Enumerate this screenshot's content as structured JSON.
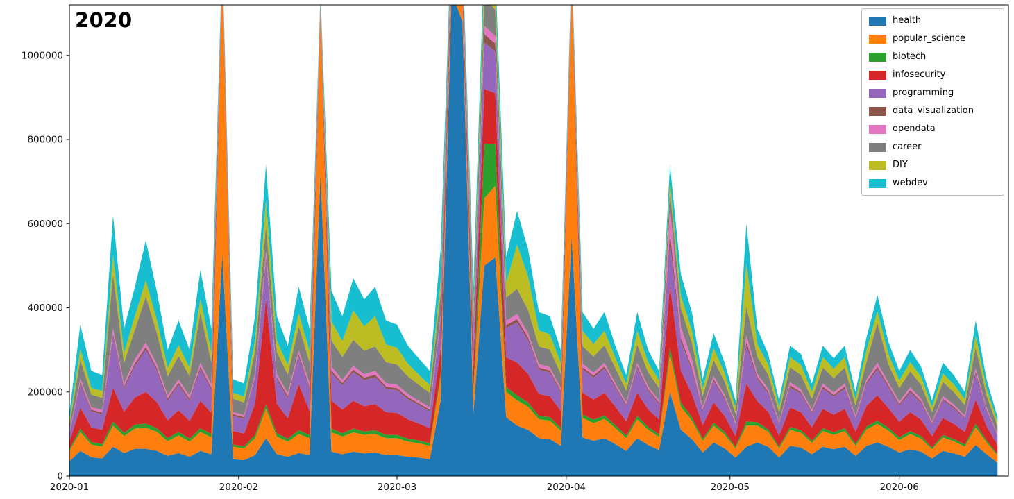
{
  "chart_data": {
    "type": "area",
    "stacked": true,
    "title": "2020",
    "xlabel": "",
    "ylabel": "",
    "grid": false,
    "legend_position": "upper right",
    "ylim": [
      0,
      1120000
    ],
    "yticks": [
      0,
      200000,
      400000,
      600000,
      800000,
      1000000
    ],
    "ytick_labels": [
      "0",
      "200000",
      "400000",
      "600000",
      "800000",
      "1000000"
    ],
    "xticks": [
      "2020-01-01",
      "2020-02-01",
      "2020-03-01",
      "2020-04-01",
      "2020-05-01",
      "2020-06-01"
    ],
    "xtick_labels": [
      "2020-01",
      "2020-02",
      "2020-03",
      "2020-04",
      "2020-05",
      "2020-06"
    ],
    "x_domain": [
      "2020-01-01",
      "2020-06-21"
    ],
    "values_unit": 1000,
    "values_note": "series values are in thousands; multiply by values_unit for axis units; values estimated from pixels, spikes above ylim are clipped",
    "x": [
      "2020-01-01",
      "2020-01-03",
      "2020-01-05",
      "2020-01-07",
      "2020-01-09",
      "2020-01-11",
      "2020-01-13",
      "2020-01-15",
      "2020-01-17",
      "2020-01-19",
      "2020-01-21",
      "2020-01-23",
      "2020-01-25",
      "2020-01-27",
      "2020-01-29",
      "2020-01-31",
      "2020-02-02",
      "2020-02-04",
      "2020-02-06",
      "2020-02-08",
      "2020-02-10",
      "2020-02-12",
      "2020-02-14",
      "2020-02-16",
      "2020-02-18",
      "2020-02-20",
      "2020-02-22",
      "2020-02-24",
      "2020-02-26",
      "2020-02-28",
      "2020-03-01",
      "2020-03-03",
      "2020-03-05",
      "2020-03-07",
      "2020-03-09",
      "2020-03-11",
      "2020-03-13",
      "2020-03-15",
      "2020-03-17",
      "2020-03-19",
      "2020-03-21",
      "2020-03-23",
      "2020-03-25",
      "2020-03-27",
      "2020-03-29",
      "2020-03-31",
      "2020-04-02",
      "2020-04-04",
      "2020-04-06",
      "2020-04-08",
      "2020-04-10",
      "2020-04-12",
      "2020-04-14",
      "2020-04-16",
      "2020-04-18",
      "2020-04-20",
      "2020-04-22",
      "2020-04-24",
      "2020-04-26",
      "2020-04-28",
      "2020-04-30",
      "2020-05-02",
      "2020-05-04",
      "2020-05-06",
      "2020-05-08",
      "2020-05-10",
      "2020-05-12",
      "2020-05-14",
      "2020-05-16",
      "2020-05-18",
      "2020-05-20",
      "2020-05-22",
      "2020-05-24",
      "2020-05-26",
      "2020-05-28",
      "2020-05-30",
      "2020-06-01",
      "2020-06-03",
      "2020-06-05",
      "2020-06-07",
      "2020-06-09",
      "2020-06-11",
      "2020-06-13",
      "2020-06-15",
      "2020-06-17",
      "2020-06-19"
    ],
    "series": [
      {
        "name": "health",
        "color": "#1f77b4",
        "values": [
          35,
          60,
          45,
          42,
          70,
          55,
          65,
          65,
          60,
          48,
          55,
          46,
          60,
          52,
          530,
          40,
          38,
          50,
          90,
          52,
          46,
          55,
          50,
          720,
          58,
          52,
          58,
          54,
          56,
          50,
          50,
          46,
          44,
          40,
          180,
          1150,
          1080,
          150,
          500,
          520,
          140,
          120,
          110,
          90,
          88,
          72,
          570,
          92,
          84,
          90,
          76,
          60,
          90,
          74,
          62,
          200,
          110,
          88,
          56,
          80,
          66,
          44,
          70,
          80,
          70,
          44,
          72,
          68,
          52,
          70,
          64,
          70,
          48,
          72,
          80,
          70,
          56,
          64,
          58,
          42,
          60,
          54,
          46,
          74,
          52,
          32
        ]
      },
      {
        "name": "popular_science",
        "color": "#ff7f0e",
        "values": [
          25,
          45,
          30,
          28,
          50,
          40,
          48,
          50,
          45,
          35,
          42,
          36,
          45,
          40,
          660,
          30,
          28,
          40,
          70,
          42,
          36,
          45,
          40,
          380,
          46,
          42,
          46,
          44,
          44,
          40,
          40,
          36,
          34,
          32,
          55,
          40,
          45,
          50,
          160,
          170,
          60,
          60,
          55,
          45,
          44,
          36,
          600,
          46,
          42,
          46,
          38,
          30,
          45,
          36,
          31,
          90,
          55,
          44,
          28,
          40,
          33,
          22,
          50,
          40,
          35,
          22,
          38,
          35,
          27,
          37,
          34,
          37,
          24,
          39,
          44,
          38,
          30,
          36,
          31,
          22,
          32,
          29,
          24,
          42,
          28,
          17
        ]
      },
      {
        "name": "biotech",
        "color": "#2ca02c",
        "values": [
          4,
          8,
          6,
          6,
          10,
          8,
          9,
          10,
          9,
          7,
          8,
          7,
          9,
          8,
          5,
          5,
          5,
          8,
          10,
          8,
          7,
          9,
          8,
          4,
          9,
          8,
          9,
          8,
          9,
          8,
          8,
          7,
          7,
          6,
          9,
          6,
          6,
          8,
          130,
          100,
          12,
          12,
          10,
          8,
          8,
          7,
          5,
          8,
          8,
          8,
          7,
          6,
          8,
          7,
          6,
          15,
          10,
          8,
          5,
          7,
          6,
          4,
          10,
          8,
          6,
          4,
          7,
          6,
          5,
          7,
          6,
          7,
          5,
          7,
          8,
          7,
          6,
          7,
          6,
          4,
          6,
          5,
          5,
          8,
          5,
          3
        ]
      },
      {
        "name": "infosecurity",
        "color": "#d62728",
        "values": [
          18,
          50,
          35,
          34,
          80,
          50,
          65,
          75,
          62,
          42,
          52,
          42,
          65,
          50,
          15,
          32,
          30,
          75,
          250,
          70,
          48,
          110,
          56,
          12,
          66,
          56,
          66,
          60,
          62,
          54,
          52,
          46,
          40,
          36,
          60,
          30,
          32,
          55,
          130,
          120,
          70,
          78,
          68,
          52,
          50,
          40,
          14,
          52,
          48,
          54,
          44,
          34,
          55,
          42,
          35,
          150,
          75,
          56,
          32,
          48,
          38,
          25,
          90,
          50,
          42,
          26,
          46,
          43,
          32,
          46,
          42,
          46,
          29,
          49,
          60,
          47,
          37,
          45,
          39,
          27,
          40,
          36,
          30,
          58,
          34,
          21
        ]
      },
      {
        "name": "programming",
        "color": "#9467bd",
        "values": [
          18,
          55,
          38,
          37,
          120,
          55,
          75,
          100,
          75,
          48,
          60,
          48,
          75,
          55,
          12,
          36,
          35,
          58,
          90,
          58,
          48,
          65,
          53,
          10,
          66,
          58,
          68,
          62,
          64,
          56,
          54,
          48,
          44,
          40,
          62,
          25,
          28,
          55,
          110,
          100,
          70,
          95,
          80,
          58,
          56,
          44,
          12,
          56,
          52,
          58,
          46,
          36,
          58,
          44,
          37,
          100,
          70,
          56,
          34,
          50,
          40,
          27,
          90,
          52,
          44,
          27,
          48,
          44,
          33,
          48,
          43,
          48,
          30,
          51,
          62,
          49,
          38,
          47,
          40,
          28,
          42,
          37,
          31,
          60,
          35,
          22
        ]
      },
      {
        "name": "data_visualization",
        "color": "#8c564b",
        "values": [
          2,
          6,
          4,
          4,
          8,
          5,
          6,
          7,
          6,
          5,
          5,
          5,
          6,
          5,
          2,
          4,
          4,
          5,
          10,
          5,
          5,
          6,
          5,
          2,
          6,
          5,
          6,
          6,
          6,
          5,
          5,
          5,
          4,
          4,
          6,
          3,
          3,
          5,
          20,
          18,
          7,
          8,
          7,
          5,
          5,
          4,
          2,
          5,
          5,
          5,
          4,
          4,
          5,
          4,
          4,
          25,
          9,
          6,
          4,
          5,
          4,
          3,
          10,
          5,
          4,
          3,
          5,
          4,
          4,
          5,
          4,
          5,
          3,
          5,
          6,
          5,
          4,
          5,
          4,
          3,
          4,
          4,
          3,
          6,
          4,
          2
        ]
      },
      {
        "name": "opendata",
        "color": "#e377c2",
        "values": [
          3,
          8,
          6,
          6,
          12,
          8,
          10,
          10,
          9,
          7,
          8,
          7,
          9,
          8,
          3,
          5,
          5,
          8,
          15,
          8,
          7,
          9,
          8,
          3,
          9,
          8,
          9,
          8,
          9,
          8,
          8,
          7,
          6,
          6,
          9,
          5,
          5,
          8,
          20,
          18,
          10,
          12,
          10,
          8,
          8,
          6,
          3,
          8,
          7,
          8,
          6,
          5,
          8,
          6,
          5,
          60,
          25,
          20,
          6,
          8,
          6,
          4,
          15,
          8,
          6,
          4,
          7,
          6,
          5,
          7,
          6,
          7,
          5,
          7,
          9,
          7,
          6,
          7,
          6,
          4,
          6,
          5,
          5,
          8,
          5,
          3
        ]
      },
      {
        "name": "career",
        "color": "#7f7f7f",
        "values": [
          15,
          45,
          30,
          29,
          130,
          48,
          70,
          110,
          75,
          45,
          56,
          46,
          120,
          52,
          8,
          32,
          30,
          52,
          60,
          52,
          44,
          58,
          50,
          7,
          62,
          54,
          62,
          56,
          58,
          50,
          48,
          42,
          38,
          34,
          54,
          18,
          20,
          45,
          70,
          62,
          55,
          60,
          55,
          42,
          42,
          34,
          9,
          42,
          38,
          42,
          36,
          28,
          44,
          34,
          29,
          40,
          45,
          40,
          26,
          38,
          32,
          21,
          70,
          40,
          34,
          21,
          36,
          34,
          26,
          38,
          34,
          38,
          24,
          42,
          95,
          44,
          32,
          38,
          33,
          22,
          34,
          30,
          25,
          50,
          29,
          18
        ]
      },
      {
        "name": "DIY",
        "color": "#bcbd22",
        "values": [
          10,
          25,
          16,
          16,
          45,
          24,
          32,
          38,
          30,
          20,
          26,
          20,
          32,
          24,
          5,
          14,
          14,
          26,
          60,
          27,
          23,
          30,
          26,
          4,
          46,
          38,
          70,
          58,
          72,
          42,
          40,
          30,
          24,
          18,
          30,
          8,
          10,
          24,
          50,
          42,
          36,
          105,
          80,
          38,
          36,
          26,
          6,
          36,
          30,
          34,
          24,
          16,
          32,
          24,
          18,
          20,
          30,
          28,
          17,
          28,
          20,
          13,
          100,
          30,
          24,
          12,
          24,
          24,
          16,
          25,
          22,
          25,
          14,
          28,
          28,
          24,
          18,
          22,
          19,
          12,
          20,
          18,
          14,
          28,
          16,
          10
        ]
      },
      {
        "name": "webdev",
        "color": "#17becf",
        "values": [
          20,
          58,
          40,
          38,
          95,
          57,
          70,
          95,
          69,
          43,
          58,
          43,
          69,
          56,
          10,
          32,
          31,
          58,
          85,
          58,
          46,
          63,
          54,
          8,
          72,
          59,
          76,
          64,
          70,
          57,
          55,
          43,
          39,
          34,
          75,
          15,
          21,
          50,
          60,
          50,
          60,
          80,
          65,
          44,
          43,
          31,
          9,
          45,
          36,
          45,
          29,
          21,
          45,
          29,
          23,
          40,
          51,
          44,
          22,
          36,
          25,
          17,
          95,
          37,
          25,
          17,
          27,
          26,
          20,
          27,
          25,
          27,
          18,
          30,
          38,
          29,
          23,
          29,
          24,
          16,
          26,
          22,
          17,
          36,
          22,
          12
        ]
      }
    ]
  }
}
